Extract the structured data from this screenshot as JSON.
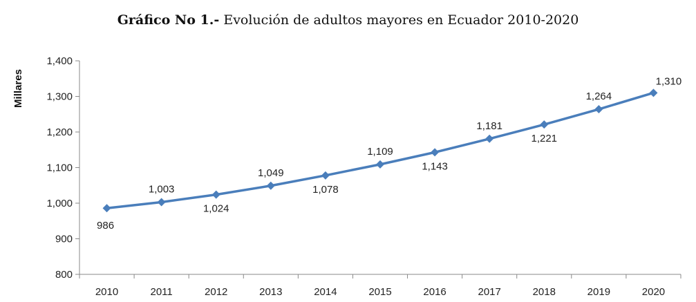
{
  "chart_data": {
    "type": "line",
    "title_bold": "Gráfico No 1.-",
    "title_rest": " Evolución de adultos mayores en Ecuador 2010-2020",
    "xlabel": "",
    "ylabel": "Millares",
    "x": [
      "2010",
      "2011",
      "2012",
      "2013",
      "2014",
      "2015",
      "2016",
      "2017",
      "2018",
      "2019",
      "2020"
    ],
    "series": [
      {
        "values": [
          986,
          1003,
          1024,
          1049,
          1078,
          1109,
          1143,
          1181,
          1221,
          1264,
          1310
        ],
        "labels": [
          "986",
          "1,003",
          "1,024",
          "1,049",
          "1,078",
          "1,109",
          "1,143",
          "1,181",
          "1,221",
          "1,264",
          "1,310"
        ],
        "label_side": [
          "below",
          "above",
          "below",
          "above",
          "below",
          "above",
          "below",
          "above",
          "below",
          "above",
          "above"
        ]
      }
    ],
    "ylim": [
      800,
      1400
    ],
    "yticks": [
      800,
      900,
      1000,
      1100,
      1200,
      1300,
      1400
    ],
    "ytick_labels": [
      "800",
      "900",
      "1,000",
      "1,100",
      "1,200",
      "1,300",
      "1,400"
    ],
    "grid": false,
    "legend": "none",
    "line_color": "#4a7ebb"
  }
}
